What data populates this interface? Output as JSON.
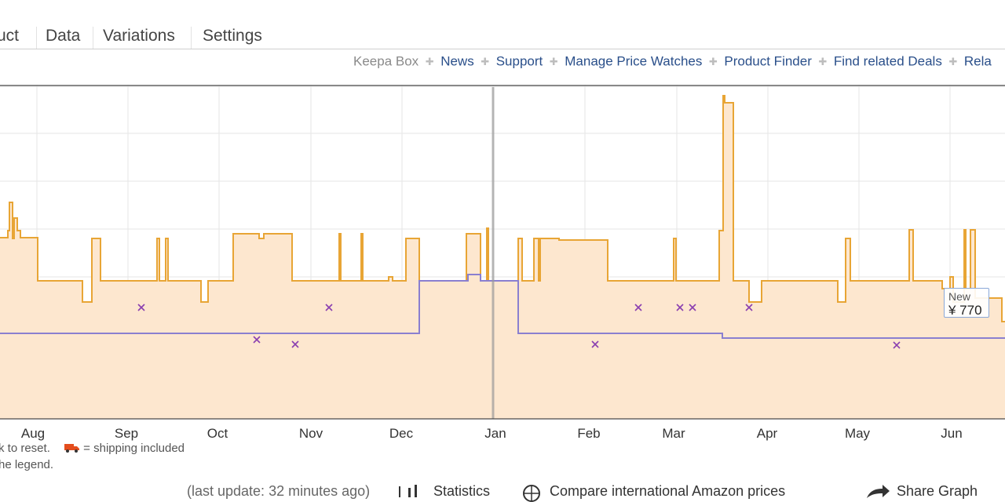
{
  "tabs": [
    {
      "label": "uct"
    },
    {
      "label": "Data"
    },
    {
      "label": "Variations"
    },
    {
      "label": "Settings"
    }
  ],
  "links": {
    "keepa_box": "Keepa Box",
    "news": "News",
    "support": "Support",
    "manage_price_watches": "Manage Price Watches",
    "product_finder": "Product Finder",
    "find_related_deals": "Find related Deals",
    "rela": "Rela"
  },
  "chart_data": {
    "type": "line",
    "x_tick_labels": [
      "Aug",
      "Sep",
      "Oct",
      "Nov",
      "Dec",
      "Jan",
      "Feb",
      "Mar",
      "Apr",
      "May",
      "Jun"
    ],
    "series": [
      {
        "name": "New",
        "color": "#e8a535"
      },
      {
        "color": "#8a7fd0"
      }
    ],
    "colors": {
      "amazon_fill": "#fde7cf",
      "new_line": "#e8a535",
      "purple_line": "#8a7fd0",
      "marker": "#8a3fb0",
      "grid": "#e6e6e6"
    }
  },
  "tooltip": {
    "label": "New",
    "value": "¥ 770"
  },
  "notes": {
    "reset": "k to reset.",
    "shipping": "= shipping included",
    "legend": "he legend."
  },
  "bottom": {
    "last_update": "(last update: 32 minutes ago)",
    "statistics": "Statistics",
    "compare": "Compare international Amazon prices",
    "share": "Share Graph"
  }
}
